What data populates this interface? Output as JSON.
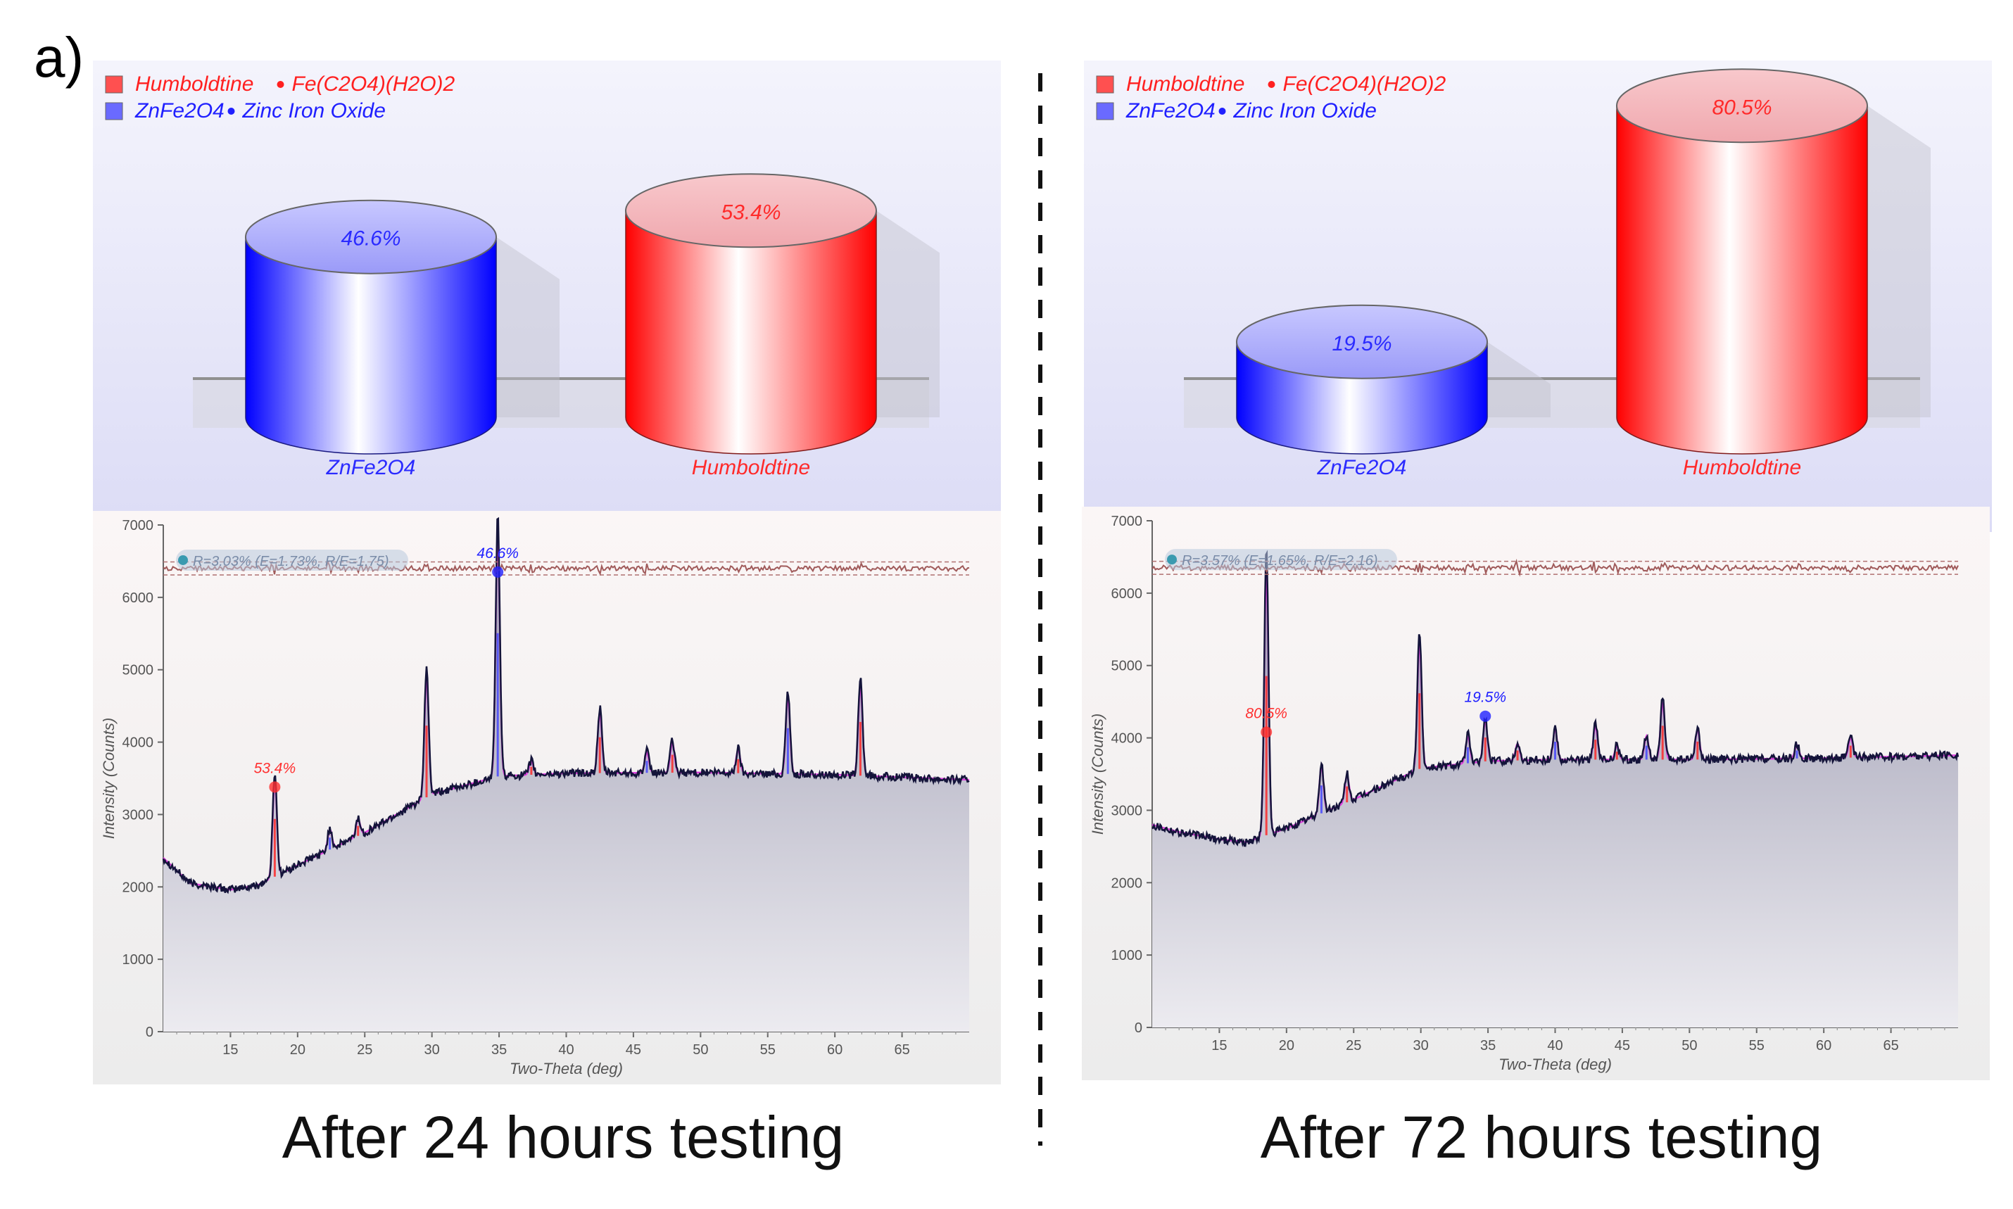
{
  "figure": {
    "panel_label": "a)",
    "captions": [
      "After 24 hours testing",
      "After 72 hours testing"
    ]
  },
  "colors": {
    "humboldtine": "#ff0000",
    "znfe2o4": "#2020ff",
    "panel_bg": "#e6e6f8",
    "residual": "#a05a5a",
    "observed": "#14143a",
    "calculated": "#e040e0"
  },
  "chart_data": [
    {
      "type": "bar",
      "subtype": "3d-cylinder",
      "legend": [
        {
          "name": "Humboldtine",
          "formula": "Fe(C2O4)(H2O)2",
          "color": "#ff5050"
        },
        {
          "name": "ZnFe2O4",
          "formula": "Zinc Iron Oxide",
          "color": "#6a6aff"
        }
      ],
      "categories": [
        "ZnFe2O4",
        "Humboldtine"
      ],
      "values": [
        46.6,
        53.4
      ],
      "value_labels": [
        "46.6%",
        "53.4%"
      ],
      "colors": [
        "#2020ff",
        "#ff0000"
      ]
    },
    {
      "type": "line",
      "xlabel": "Two-Theta (deg)",
      "ylabel": "Intensity (Counts)",
      "xlim": [
        10,
        70
      ],
      "ylim": [
        0,
        7000
      ],
      "xticks": [
        15,
        20,
        25,
        30,
        35,
        40,
        45,
        50,
        55,
        60,
        65
      ],
      "yticks": [
        0,
        1000,
        2000,
        3000,
        4000,
        5000,
        6000,
        7000
      ],
      "fit_label": "R=3.03% (E=1.73%, R/E=1.75)",
      "baseline": [
        [
          10,
          2400
        ],
        [
          12,
          2050
        ],
        [
          15,
          1960
        ],
        [
          17,
          2020
        ],
        [
          20,
          2300
        ],
        [
          25,
          2750
        ],
        [
          30,
          3280
        ],
        [
          35,
          3530
        ],
        [
          40,
          3570
        ],
        [
          50,
          3580
        ],
        [
          60,
          3550
        ],
        [
          70,
          3480
        ]
      ],
      "peaks": [
        [
          18.3,
          1450
        ],
        [
          22.4,
          300
        ],
        [
          24.5,
          250
        ],
        [
          29.6,
          1800
        ],
        [
          34.9,
          3600
        ],
        [
          37.4,
          200
        ],
        [
          42.5,
          900
        ],
        [
          46.0,
          300
        ],
        [
          47.9,
          450
        ],
        [
          52.8,
          350
        ],
        [
          56.5,
          1150
        ],
        [
          61.9,
          1350
        ]
      ],
      "markers": [
        {
          "x": 18.3,
          "y": 3380,
          "label": "53.4%",
          "color": "#ff3030"
        },
        {
          "x": 34.9,
          "y": 6350,
          "label": "46.6%",
          "color": "#2020ff"
        }
      ],
      "residual_level": 6400
    },
    {
      "type": "bar",
      "subtype": "3d-cylinder",
      "legend": [
        {
          "name": "Humboldtine",
          "formula": "Fe(C2O4)(H2O)2",
          "color": "#ff5050"
        },
        {
          "name": "ZnFe2O4",
          "formula": "Zinc Iron Oxide",
          "color": "#6a6aff"
        }
      ],
      "categories": [
        "ZnFe2O4",
        "Humboldtine"
      ],
      "values": [
        19.5,
        80.5
      ],
      "value_labels": [
        "19.5%",
        "80.5%"
      ],
      "colors": [
        "#2020ff",
        "#ff0000"
      ]
    },
    {
      "type": "line",
      "xlabel": "Two-Theta (deg)",
      "ylabel": "Intensity (Counts)",
      "xlim": [
        10,
        70
      ],
      "ylim": [
        0,
        7000
      ],
      "xticks": [
        15,
        20,
        25,
        30,
        35,
        40,
        45,
        50,
        55,
        60,
        65
      ],
      "yticks": [
        0,
        1000,
        2000,
        3000,
        4000,
        5000,
        6000,
        7000
      ],
      "fit_label": "R=3.57% (E=1.65%, R/E=2.16)",
      "baseline": [
        [
          10,
          2800
        ],
        [
          12,
          2700
        ],
        [
          15,
          2600
        ],
        [
          17,
          2560
        ],
        [
          20,
          2750
        ],
        [
          25,
          3150
        ],
        [
          30,
          3580
        ],
        [
          35,
          3680
        ],
        [
          40,
          3700
        ],
        [
          50,
          3700
        ],
        [
          60,
          3720
        ],
        [
          70,
          3760
        ]
      ],
      "peaks": [
        [
          18.5,
          4000
        ],
        [
          22.6,
          700
        ],
        [
          24.5,
          400
        ],
        [
          29.9,
          1900
        ],
        [
          33.5,
          400
        ],
        [
          34.8,
          600
        ],
        [
          37.2,
          250
        ],
        [
          40.0,
          450
        ],
        [
          43.0,
          500
        ],
        [
          44.6,
          200
        ],
        [
          46.8,
          350
        ],
        [
          48.0,
          850
        ],
        [
          50.6,
          450
        ],
        [
          58.0,
          200
        ],
        [
          62.0,
          300
        ]
      ],
      "markers": [
        {
          "x": 18.5,
          "y": 4080,
          "label": "80.5%",
          "color": "#ff3030"
        },
        {
          "x": 34.8,
          "y": 4300,
          "label": "19.5%",
          "color": "#2020ff"
        }
      ],
      "residual_level": 6350
    }
  ]
}
